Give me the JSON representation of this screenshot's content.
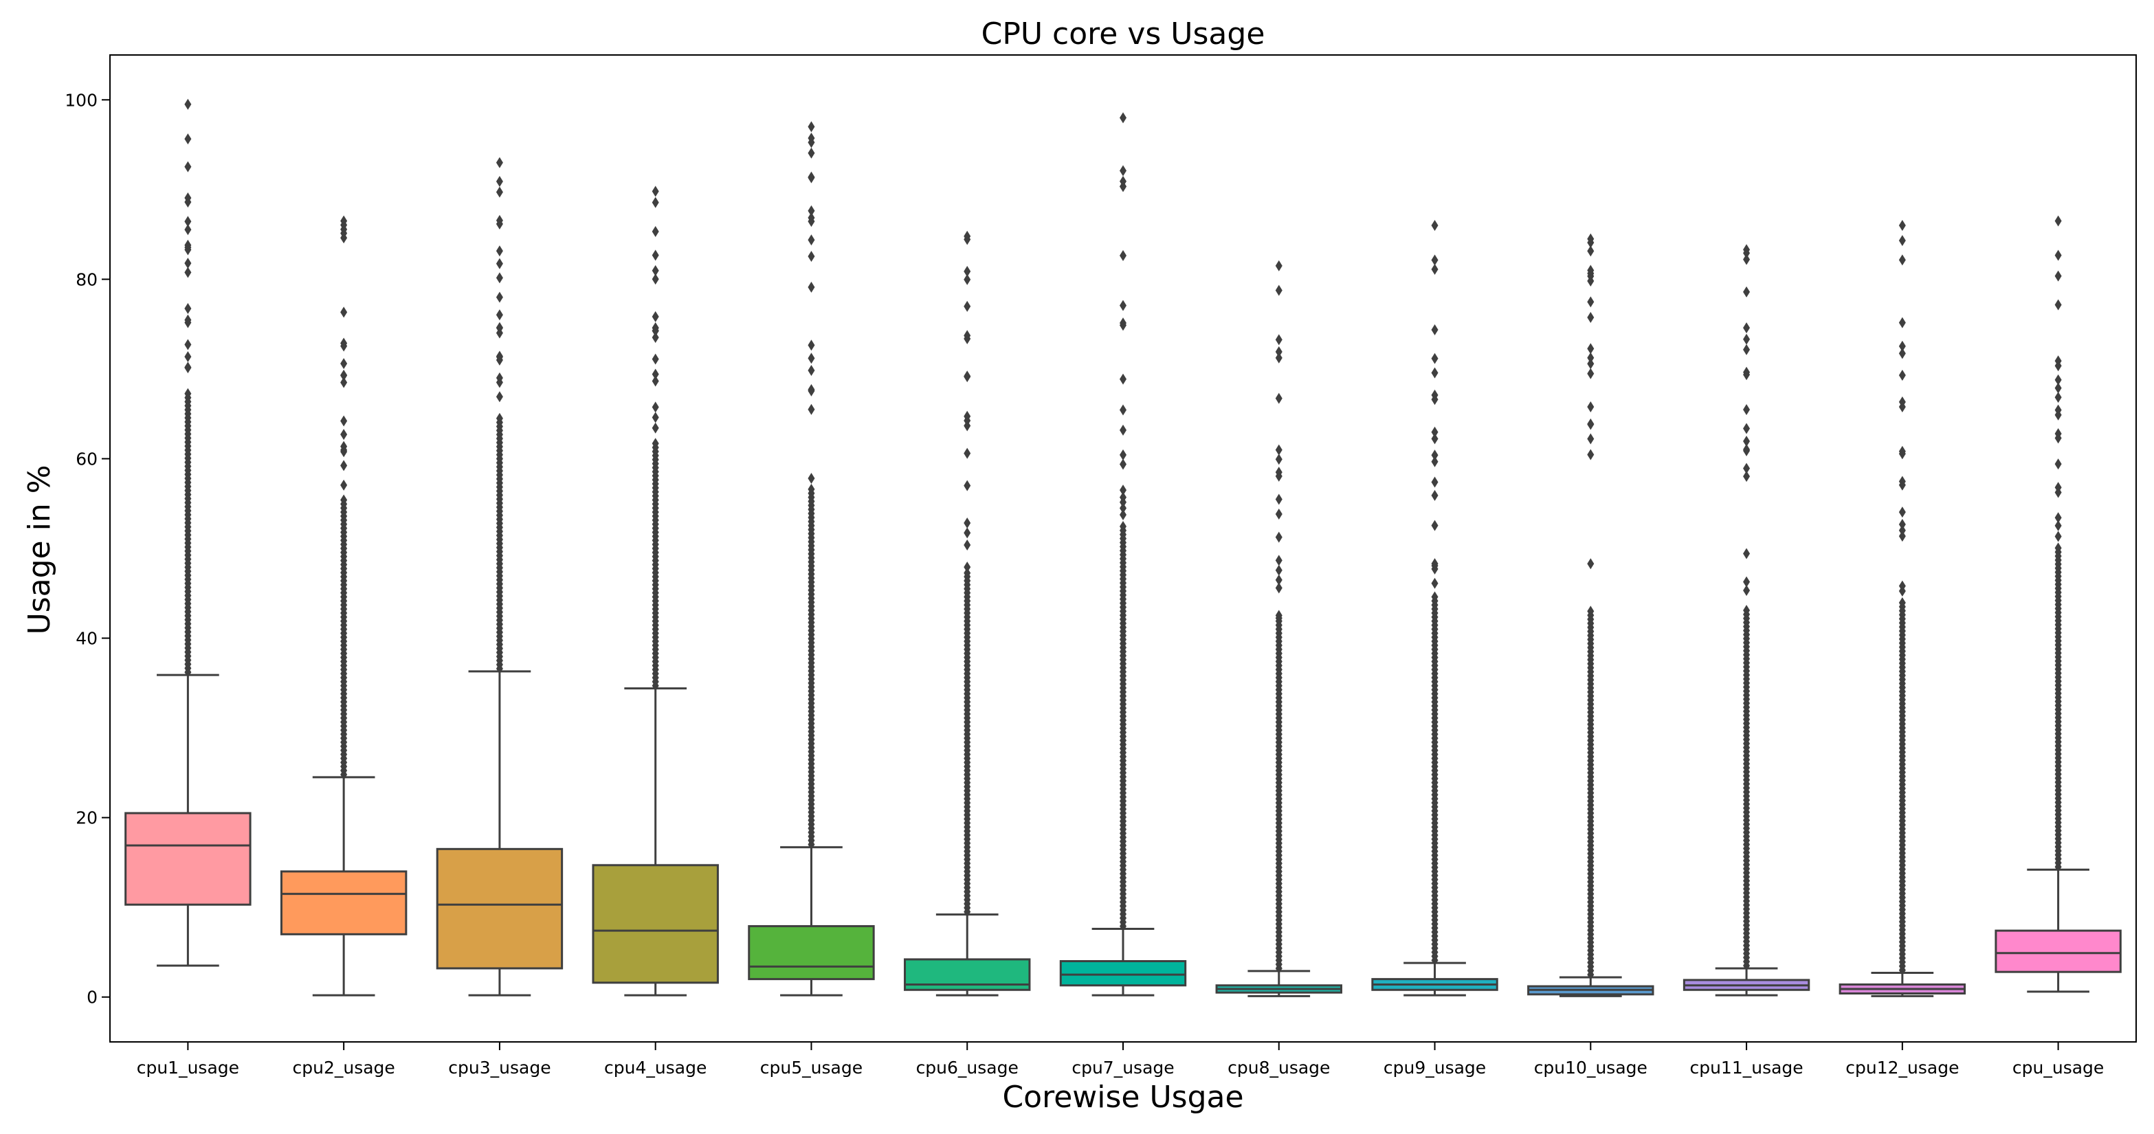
{
  "chart_data": {
    "type": "box",
    "title": "CPU core vs Usage",
    "xlabel": "Corewise Usgae",
    "ylabel": "Usage in %",
    "ylim": [
      -5,
      105
    ],
    "yticks": [
      0,
      20,
      40,
      60,
      80,
      100
    ],
    "grid": false,
    "categories": [
      "cpu1_usage",
      "cpu2_usage",
      "cpu3_usage",
      "cpu4_usage",
      "cpu5_usage",
      "cpu6_usage",
      "cpu7_usage",
      "cpu8_usage",
      "cpu9_usage",
      "cpu10_usage",
      "cpu11_usage",
      "cpu12_usage",
      "cpu_usage"
    ],
    "colors": [
      "#ff9aa2",
      "#ff9a5c",
      "#d8a048",
      "#a8a03c",
      "#55b33c",
      "#1fb87e",
      "#00b49c",
      "#1fb3a5",
      "#20b0c0",
      "#5a9bd0",
      "#a98de0",
      "#d986d8",
      "#ff88cc"
    ],
    "boxes": [
      {
        "lower_whisker": 3.5,
        "q1": 10.3,
        "median": 16.9,
        "q3": 20.5,
        "upper_whisker": 35.9,
        "flier_max": 99.5
      },
      {
        "lower_whisker": 0.2,
        "q1": 7.0,
        "median": 11.5,
        "q3": 14.0,
        "upper_whisker": 24.5,
        "flier_max": 86.5
      },
      {
        "lower_whisker": 0.2,
        "q1": 3.2,
        "median": 10.3,
        "q3": 16.5,
        "upper_whisker": 36.3,
        "flier_max": 93.0
      },
      {
        "lower_whisker": 0.2,
        "q1": 1.6,
        "median": 7.4,
        "q3": 14.7,
        "upper_whisker": 34.4,
        "flier_max": 89.8
      },
      {
        "lower_whisker": 0.2,
        "q1": 2.0,
        "median": 3.4,
        "q3": 7.9,
        "upper_whisker": 16.7,
        "flier_max": 97.0
      },
      {
        "lower_whisker": 0.2,
        "q1": 0.8,
        "median": 1.4,
        "q3": 4.2,
        "upper_whisker": 9.2,
        "flier_max": 84.8
      },
      {
        "lower_whisker": 0.2,
        "q1": 1.3,
        "median": 2.5,
        "q3": 4.0,
        "upper_whisker": 7.6,
        "flier_max": 98.0
      },
      {
        "lower_whisker": 0.1,
        "q1": 0.5,
        "median": 0.9,
        "q3": 1.3,
        "upper_whisker": 2.9,
        "flier_max": 81.5
      },
      {
        "lower_whisker": 0.2,
        "q1": 0.8,
        "median": 1.4,
        "q3": 2.0,
        "upper_whisker": 3.8,
        "flier_max": 86.0
      },
      {
        "lower_whisker": 0.1,
        "q1": 0.3,
        "median": 0.8,
        "q3": 1.2,
        "upper_whisker": 2.2,
        "flier_max": 84.5
      },
      {
        "lower_whisker": 0.2,
        "q1": 0.8,
        "median": 1.3,
        "q3": 1.9,
        "upper_whisker": 3.2,
        "flier_max": 83.3
      },
      {
        "lower_whisker": 0.1,
        "q1": 0.4,
        "median": 0.9,
        "q3": 1.4,
        "upper_whisker": 2.7,
        "flier_max": 86.0
      },
      {
        "lower_whisker": 0.6,
        "q1": 2.8,
        "median": 4.9,
        "q3": 7.4,
        "upper_whisker": 14.2,
        "flier_max": 86.5
      }
    ]
  }
}
